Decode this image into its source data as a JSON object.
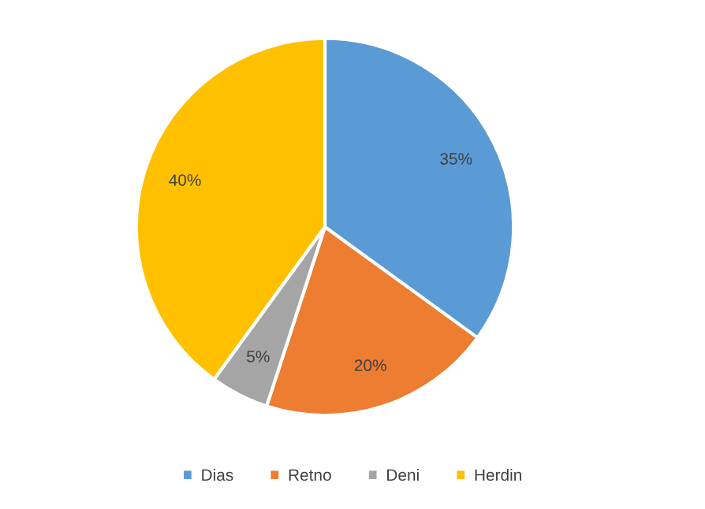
{
  "chart_data": {
    "type": "pie",
    "categories": [
      "Dias",
      "Retno",
      "Deni",
      "Herdin"
    ],
    "values": [
      35,
      20,
      5,
      40
    ],
    "colors": [
      "#5b9bd5",
      "#ed7d31",
      "#a5a5a5",
      "#ffc000"
    ],
    "value_labels": [
      "35%",
      "20%",
      "5%",
      "40%"
    ],
    "legend": "bottom"
  }
}
